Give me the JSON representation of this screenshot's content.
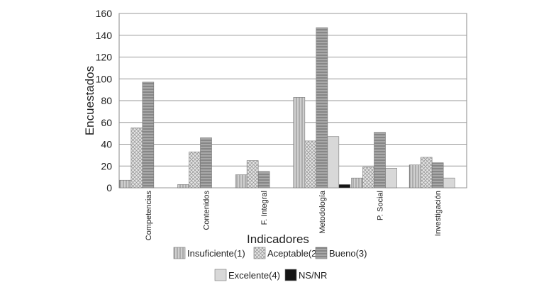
{
  "chart_data": {
    "type": "bar",
    "y_label": "Encuestados",
    "x_label": "Indicadores",
    "categories": [
      "Competencias",
      "Contenidos",
      "F. Integral",
      "Metodología",
      "P. Social",
      "Investigación"
    ],
    "series": [
      {
        "name": "Insuficiente(1)",
        "color": "#cfcfcf",
        "values": [
          7,
          3,
          12,
          83,
          9,
          21
        ]
      },
      {
        "name": "Aceptable(2)",
        "color": "#e6e6e6",
        "values": [
          55,
          33,
          25,
          43,
          19,
          28
        ]
      },
      {
        "name": "Bueno(3)",
        "color": "#a8a8a8",
        "values": [
          97,
          46,
          15,
          147,
          51,
          23
        ]
      },
      {
        "name": "Excelente(4)",
        "color": "#d8d8d8",
        "values": [
          0,
          0,
          0,
          47,
          18,
          9
        ]
      },
      {
        "name": "NS/NR",
        "color": "#151515",
        "values": [
          0,
          0,
          0,
          3,
          0,
          0
        ]
      }
    ],
    "ylim": [
      0,
      160
    ],
    "yticks": [
      0,
      20,
      40,
      60,
      80,
      100,
      120,
      140,
      160
    ],
    "grid": true
  }
}
